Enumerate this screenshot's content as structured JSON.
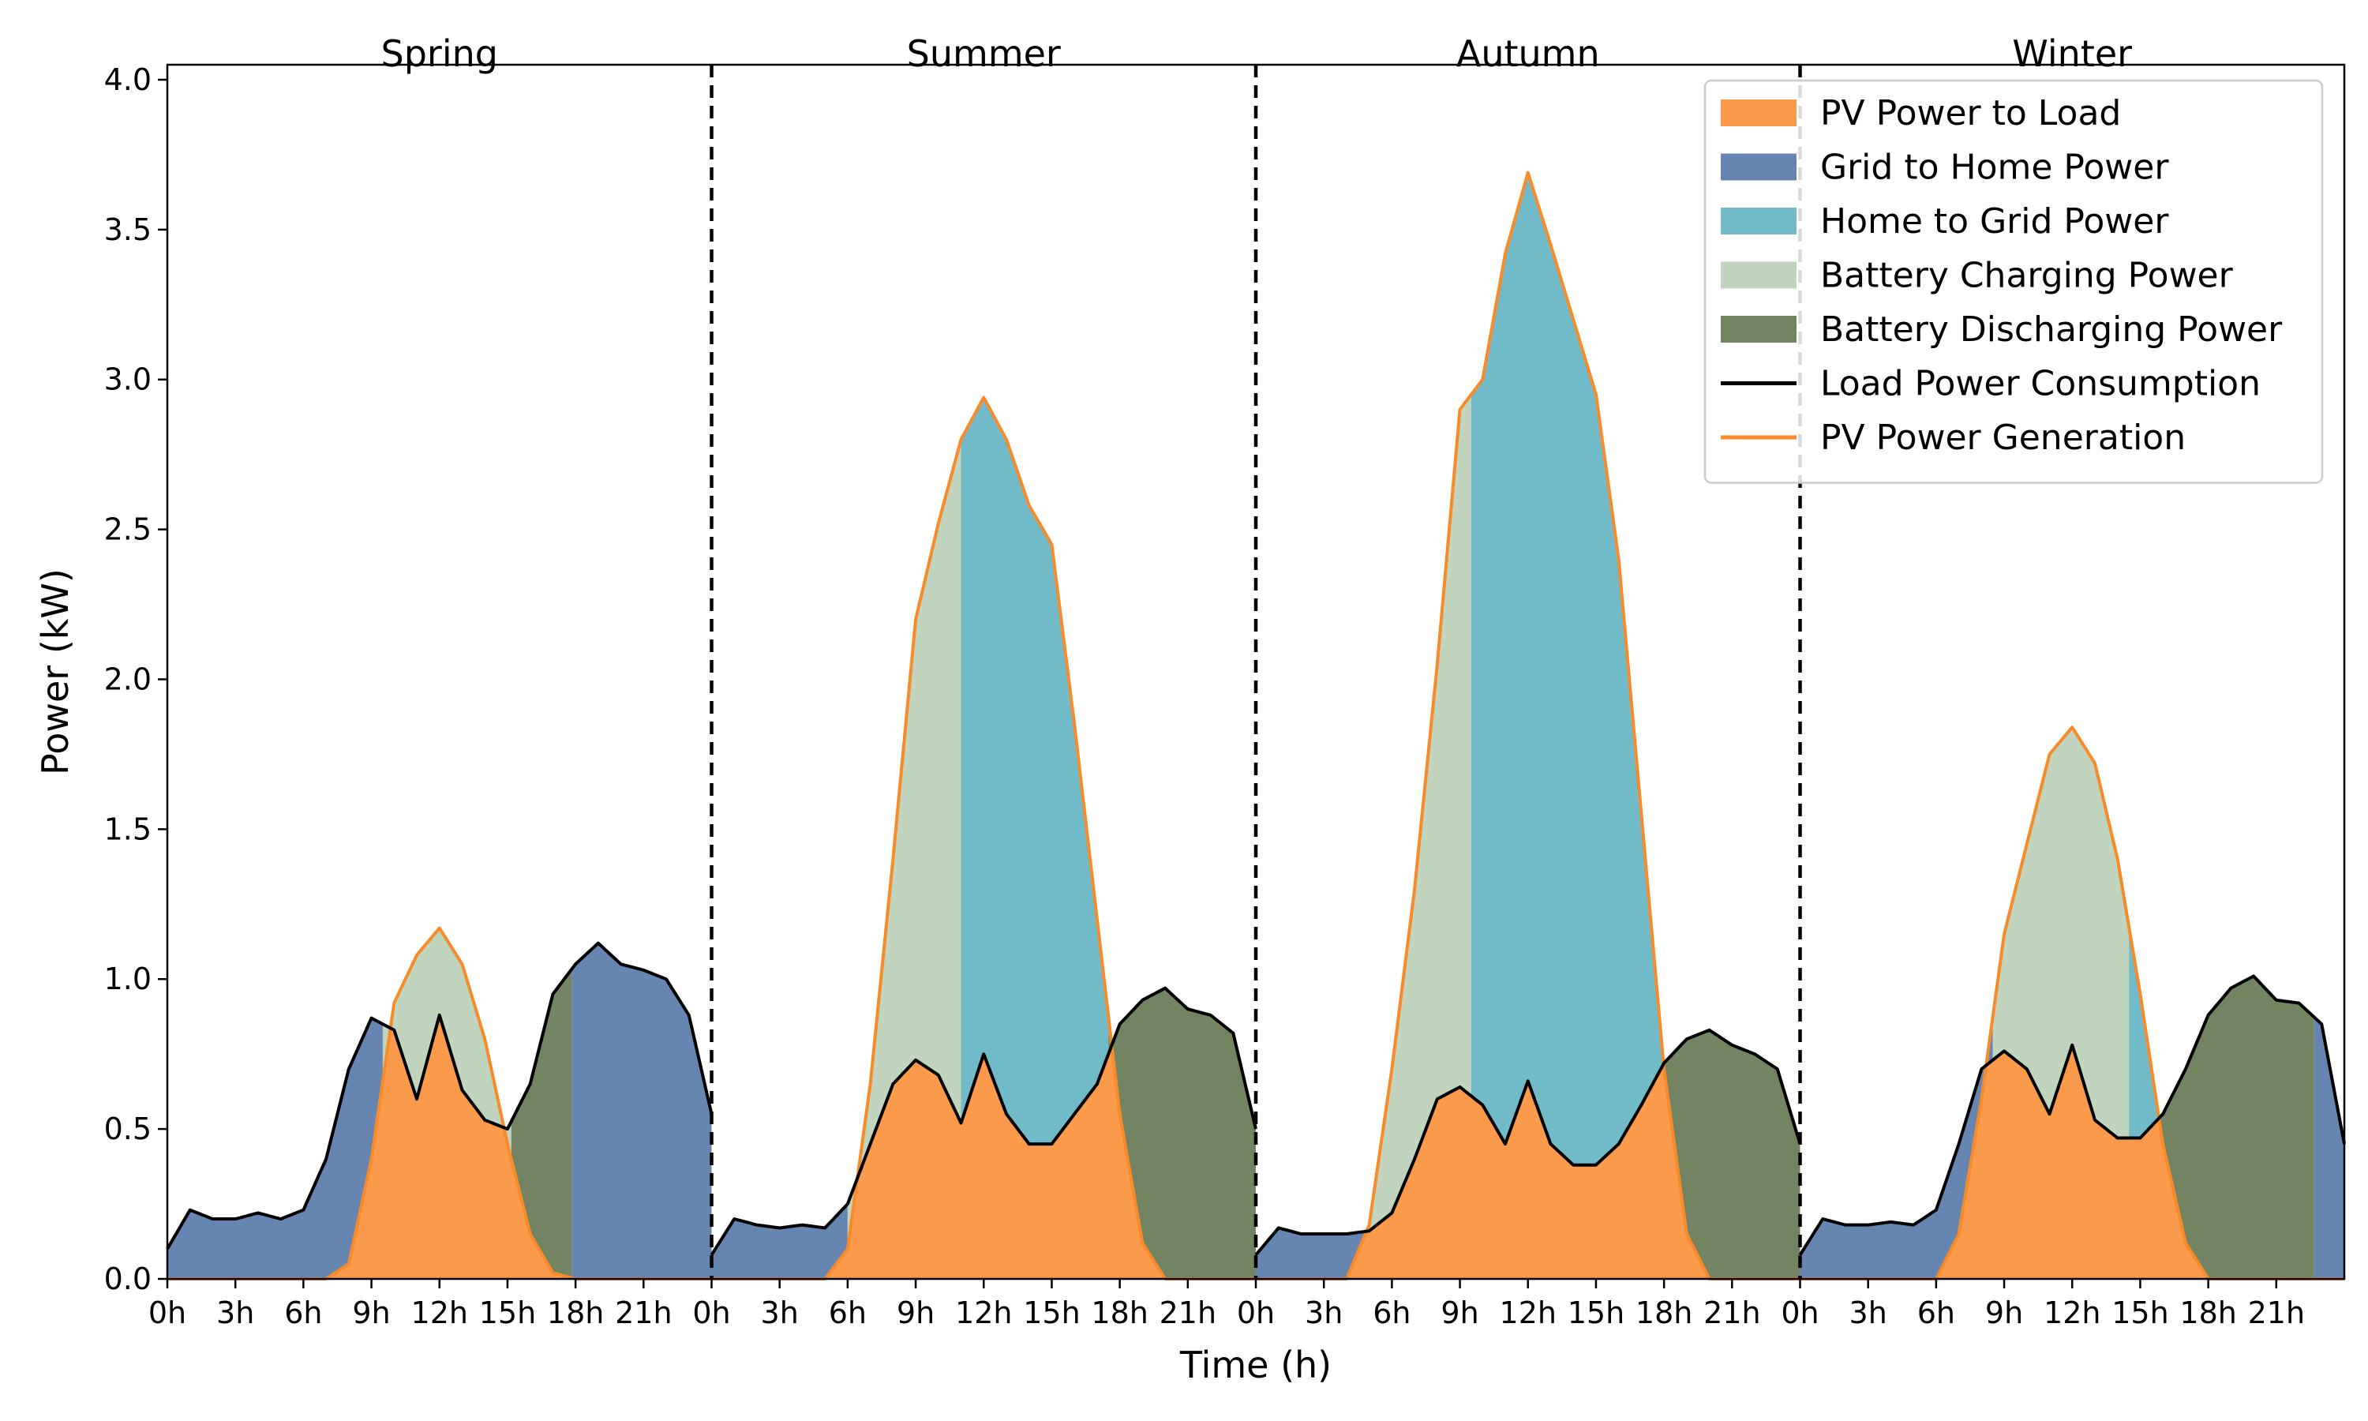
{
  "chart_data": {
    "type": "area",
    "xlabel": "Time (h)",
    "ylabel": "Power (kW)",
    "ylim": [
      0,
      4.05
    ],
    "yticks": [
      "0.0",
      "0.5",
      "1.0",
      "1.5",
      "2.0",
      "2.5",
      "3.0",
      "3.5",
      "4.0"
    ],
    "hour_ticks": [
      "0h",
      "3h",
      "6h",
      "9h",
      "12h",
      "15h",
      "18h",
      "21h"
    ],
    "grid": false,
    "legend_position": "top-right",
    "legend": [
      {
        "name": "PV Power to Load",
        "kind": "patch",
        "color": "#fc9a4b"
      },
      {
        "name": "Grid to Home Power",
        "kind": "patch",
        "color": "#6685b1"
      },
      {
        "name": "Home to Grid Power",
        "kind": "patch",
        "color": "#71bbc9"
      },
      {
        "name": "Battery Charging Power",
        "kind": "patch",
        "color": "#c0d4be"
      },
      {
        "name": "Battery Discharging Power",
        "kind": "patch",
        "color": "#728461"
      },
      {
        "name": "Load Power Consumption",
        "kind": "line",
        "color": "#000000"
      },
      {
        "name": "PV Power Generation",
        "kind": "line",
        "color": "#f88a2a"
      }
    ],
    "x_hours": [
      0,
      1,
      2,
      3,
      4,
      5,
      6,
      7,
      8,
      9,
      10,
      11,
      12,
      13,
      14,
      15,
      16,
      17,
      18,
      19,
      20,
      21,
      22,
      23,
      24
    ],
    "seasons": [
      {
        "name": "Spring",
        "load": [
          0.1,
          0.23,
          0.2,
          0.2,
          0.22,
          0.2,
          0.23,
          0.4,
          0.7,
          0.87,
          0.83,
          0.6,
          0.88,
          0.63,
          0.53,
          0.5,
          0.65,
          0.95,
          1.05,
          1.12,
          1.05,
          1.03,
          1.0,
          0.88,
          0.55
        ],
        "pv": [
          0,
          0,
          0,
          0,
          0,
          0,
          0,
          0,
          0.05,
          0.4,
          0.92,
          1.08,
          1.17,
          1.05,
          0.8,
          0.45,
          0.15,
          0.02,
          0,
          0,
          0,
          0,
          0,
          0,
          0
        ],
        "battery": [
          {
            "from": 0,
            "to": 9.5,
            "state": "idle"
          },
          {
            "from": 9.5,
            "to": 15.2,
            "state": "charging"
          },
          {
            "from": 15.2,
            "to": 17.8,
            "state": "discharging"
          },
          {
            "from": 17.8,
            "to": 24,
            "state": "idle"
          }
        ]
      },
      {
        "name": "Summer",
        "load": [
          0.08,
          0.2,
          0.18,
          0.17,
          0.18,
          0.17,
          0.25,
          0.45,
          0.65,
          0.73,
          0.68,
          0.52,
          0.75,
          0.55,
          0.45,
          0.45,
          0.55,
          0.65,
          0.85,
          0.93,
          0.97,
          0.9,
          0.88,
          0.82,
          0.5
        ],
        "pv": [
          0,
          0,
          0,
          0,
          0,
          0,
          0.1,
          0.65,
          1.4,
          2.2,
          2.52,
          2.8,
          2.94,
          2.8,
          2.58,
          2.45,
          1.85,
          1.2,
          0.55,
          0.12,
          0,
          0,
          0,
          0,
          0
        ],
        "battery": [
          {
            "from": 0,
            "to": 6,
            "state": "idle"
          },
          {
            "from": 6,
            "to": 11,
            "state": "charging"
          },
          {
            "from": 11,
            "to": 17.5,
            "state": "export"
          },
          {
            "from": 17.5,
            "to": 24,
            "state": "discharging"
          }
        ]
      },
      {
        "name": "Autumn",
        "load": [
          0.08,
          0.17,
          0.15,
          0.15,
          0.15,
          0.16,
          0.22,
          0.4,
          0.6,
          0.64,
          0.58,
          0.45,
          0.66,
          0.45,
          0.38,
          0.38,
          0.45,
          0.58,
          0.72,
          0.8,
          0.83,
          0.78,
          0.75,
          0.7,
          0.45
        ],
        "pv": [
          0,
          0,
          0,
          0,
          0,
          0.18,
          0.7,
          1.3,
          2.05,
          2.9,
          3.0,
          3.42,
          3.69,
          3.45,
          3.2,
          2.95,
          2.4,
          1.55,
          0.7,
          0.15,
          0,
          0,
          0,
          0,
          0
        ],
        "battery": [
          {
            "from": 0,
            "to": 5,
            "state": "idle"
          },
          {
            "from": 5,
            "to": 9.5,
            "state": "charging"
          },
          {
            "from": 9.5,
            "to": 18,
            "state": "export"
          },
          {
            "from": 18,
            "to": 24,
            "state": "discharging"
          }
        ]
      },
      {
        "name": "Winter",
        "load": [
          0.08,
          0.2,
          0.18,
          0.18,
          0.19,
          0.18,
          0.23,
          0.45,
          0.7,
          0.76,
          0.7,
          0.55,
          0.78,
          0.53,
          0.47,
          0.47,
          0.55,
          0.7,
          0.88,
          0.97,
          1.01,
          0.93,
          0.92,
          0.85,
          0.45
        ],
        "pv": [
          0,
          0,
          0,
          0,
          0,
          0,
          0,
          0.15,
          0.6,
          1.15,
          1.45,
          1.75,
          1.84,
          1.72,
          1.4,
          0.95,
          0.45,
          0.12,
          0,
          0,
          0,
          0,
          0,
          0,
          0
        ],
        "battery": [
          {
            "from": 0,
            "to": 8.5,
            "state": "idle"
          },
          {
            "from": 8.5,
            "to": 14.5,
            "state": "charging"
          },
          {
            "from": 14.5,
            "to": 15.8,
            "state": "export"
          },
          {
            "from": 15.8,
            "to": 22.7,
            "state": "discharging"
          },
          {
            "from": 22.7,
            "to": 24,
            "state": "idle"
          }
        ]
      }
    ]
  }
}
